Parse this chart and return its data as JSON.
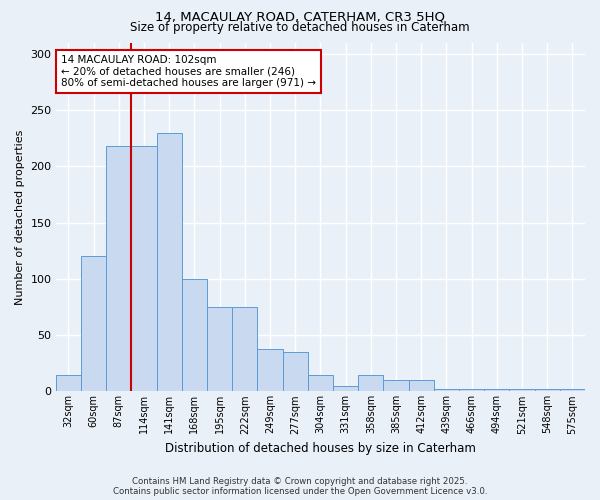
{
  "title1": "14, MACAULAY ROAD, CATERHAM, CR3 5HQ",
  "title2": "Size of property relative to detached houses in Caterham",
  "xlabel": "Distribution of detached houses by size in Caterham",
  "ylabel": "Number of detached properties",
  "categories": [
    "32sqm",
    "60sqm",
    "87sqm",
    "114sqm",
    "141sqm",
    "168sqm",
    "195sqm",
    "222sqm",
    "249sqm",
    "277sqm",
    "304sqm",
    "331sqm",
    "358sqm",
    "385sqm",
    "412sqm",
    "439sqm",
    "466sqm",
    "494sqm",
    "521sqm",
    "548sqm",
    "575sqm"
  ],
  "values": [
    15,
    120,
    218,
    218,
    230,
    100,
    75,
    75,
    38,
    35,
    15,
    5,
    15,
    10,
    10,
    2,
    2,
    2,
    2,
    2,
    2
  ],
  "bar_color": "#c9d9f0",
  "bar_edge_color": "#5b9bd5",
  "annotation_text_line1": "14 MACAULAY ROAD: 102sqm",
  "annotation_text_line2": "← 20% of detached houses are smaller (246)",
  "annotation_text_line3": "80% of semi-detached houses are larger (971) →",
  "annotation_box_color": "#ffffff",
  "annotation_box_edge": "#cc0000",
  "annotation_line_color": "#cc0000",
  "ylim": [
    0,
    310
  ],
  "yticks": [
    0,
    50,
    100,
    150,
    200,
    250,
    300
  ],
  "background_color": "#eaf0f8",
  "grid_color": "#ffffff",
  "footer1": "Contains HM Land Registry data © Crown copyright and database right 2025.",
  "footer2": "Contains public sector information licensed under the Open Government Licence v3.0."
}
